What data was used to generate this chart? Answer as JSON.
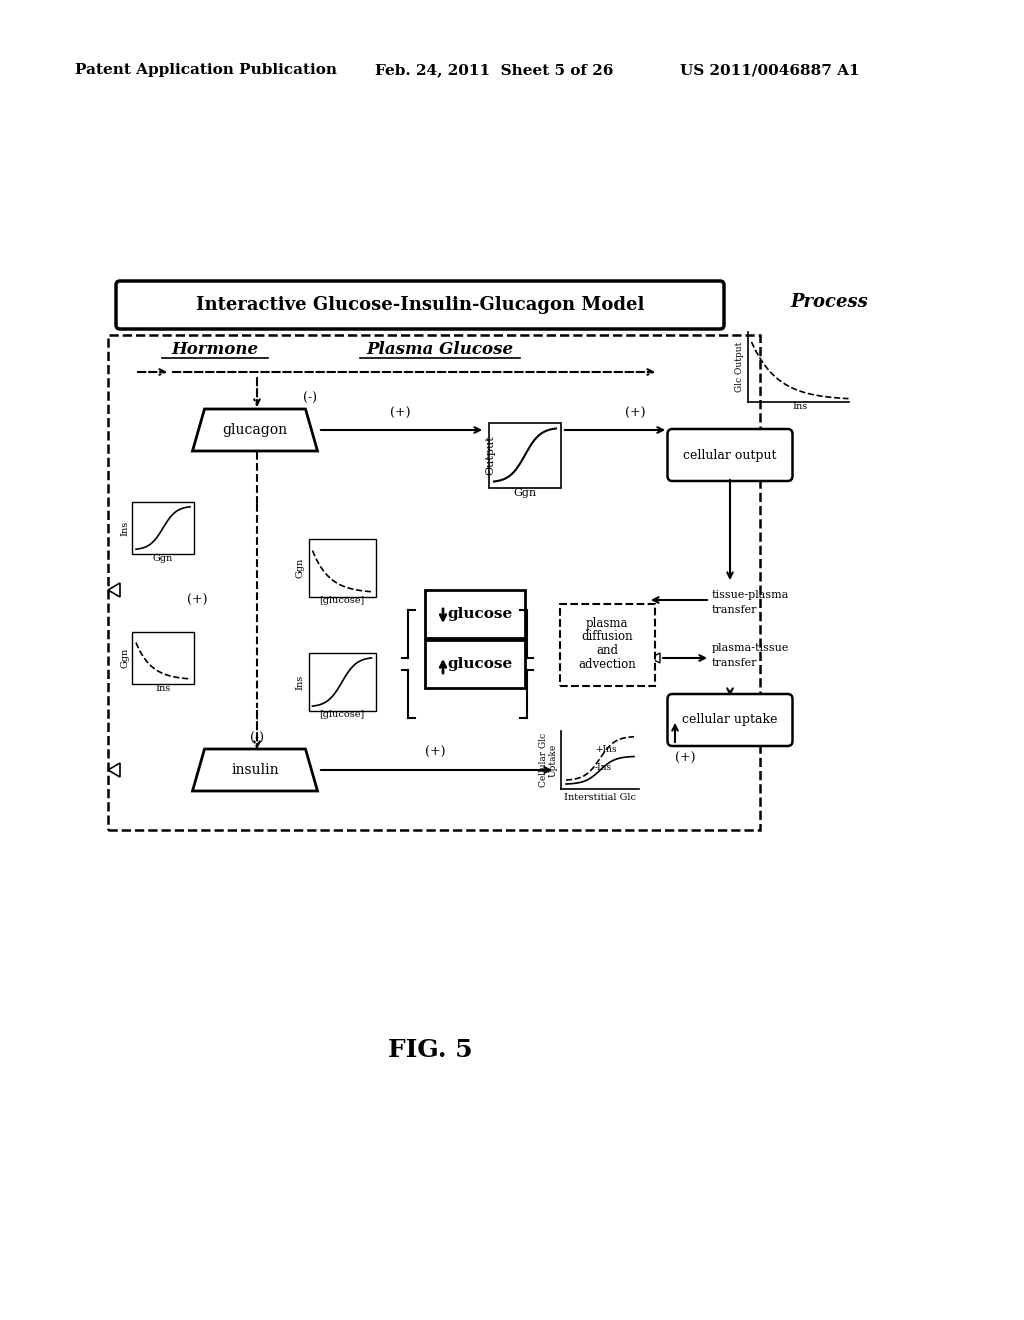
{
  "title": "Interactive Glucose-Insulin-Glucagon Model",
  "process_label": "Process",
  "hormone_label": "Hormone",
  "plasma_glucose_label": "Plasma Glucose",
  "fig_label": "FIG. 5",
  "header_left": "Patent Application Publication",
  "header_mid": "Feb. 24, 2011  Sheet 5 of 26",
  "header_right": "US 2011/0046887 A1",
  "bg_color": "#ffffff"
}
